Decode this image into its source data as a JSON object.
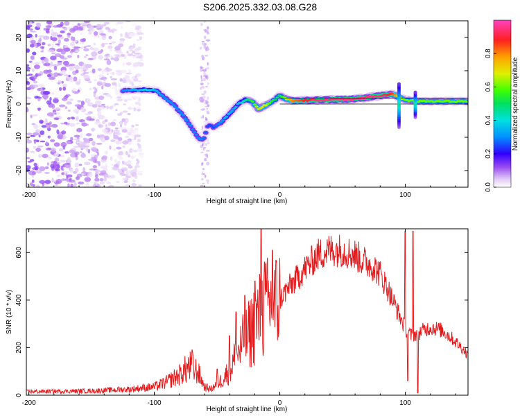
{
  "title": "S206.2025.332.03.08.G28",
  "chart_data": [
    {
      "type": "heatmap",
      "name": "spectrogram",
      "xlabel": "Height of straight line (km)",
      "ylabel": "Frequency (Hz)",
      "xlim": [
        -202,
        150
      ],
      "ylim": [
        -25,
        25
      ],
      "xticks": [
        -200,
        -100,
        0,
        100
      ],
      "yticks": [
        -20,
        -10,
        0,
        10,
        20
      ],
      "colorbar": {
        "label": "Normalized spectral amplitude",
        "range": [
          0,
          1
        ],
        "ticks": [
          0.0,
          0.2,
          0.4,
          0.6,
          0.8
        ],
        "tick_labels": [
          "0.0",
          "0.2",
          "0.4",
          "0.6",
          "0.8"
        ]
      },
      "ridge": {
        "x": [
          -125,
          -115,
          -105,
          -98,
          -92,
          -85,
          -78,
          -72,
          -67,
          -63,
          -60,
          -57,
          -53,
          -48,
          -43,
          -38,
          -33,
          -27,
          -22,
          -17,
          -12,
          -7,
          -3,
          0,
          3,
          10,
          30,
          60,
          80,
          90,
          95,
          100,
          110,
          150
        ],
        "freq": [
          4,
          4.2,
          4.3,
          4,
          2,
          0,
          -3,
          -6,
          -9,
          -11,
          -10,
          -6,
          -7,
          -6,
          -4,
          -2,
          0,
          1.3,
          0.8,
          -1.5,
          -0.5,
          0.5,
          1.5,
          2.6,
          1.8,
          1.0,
          1.2,
          1.5,
          2.5,
          3.0,
          2.0,
          1.2,
          0.8,
          0.8
        ],
        "amplitude": [
          0.3,
          0.35,
          0.4,
          0.35,
          0.3,
          0.3,
          0.3,
          0.3,
          0.3,
          0.3,
          0.28,
          0.25,
          0.25,
          0.3,
          0.35,
          0.35,
          0.35,
          0.45,
          0.55,
          0.7,
          0.7,
          0.55,
          0.5,
          0.5,
          0.6,
          0.8,
          0.95,
          0.95,
          0.95,
          0.85,
          0.7,
          0.6,
          0.6,
          0.6
        ]
      },
      "noise_region_x": [
        -202,
        -110
      ]
    },
    {
      "type": "line",
      "name": "snr",
      "xlabel": "Height of straight line (km)",
      "ylabel": "SNR (10 * v/v)",
      "xlim": [
        -202,
        150
      ],
      "ylim": [
        0,
        700
      ],
      "xticks": [
        -200,
        -100,
        0,
        100
      ],
      "yticks": [
        0,
        200,
        400,
        600
      ],
      "color": "#e41a1c",
      "envelope": {
        "x": [
          -202,
          -150,
          -120,
          -100,
          -90,
          -80,
          -72,
          -65,
          -60,
          -55,
          -45,
          -40,
          -35,
          -30,
          -25,
          -20,
          -15,
          -10,
          -5,
          0,
          5,
          10,
          15,
          20,
          25,
          30,
          35,
          40,
          45,
          50,
          55,
          60,
          65,
          70,
          75,
          80,
          85,
          90,
          95,
          100,
          105,
          110,
          115,
          120,
          125,
          130,
          135,
          140,
          145,
          150
        ],
        "y": [
          15,
          18,
          25,
          35,
          55,
          85,
          120,
          95,
          35,
          25,
          70,
          110,
          160,
          210,
          250,
          300,
          340,
          370,
          380,
          400,
          440,
          470,
          500,
          530,
          560,
          590,
          600,
          610,
          612,
          610,
          600,
          590,
          570,
          555,
          540,
          510,
          460,
          400,
          340,
          280,
          250,
          260,
          275,
          285,
          280,
          270,
          250,
          225,
          200,
          170
        ]
      },
      "spikes": [
        {
          "x": -70,
          "y": 190
        },
        {
          "x": -50,
          "y": 110
        },
        {
          "x": -40,
          "y": 250
        },
        {
          "x": -35,
          "y": 350
        },
        {
          "x": -28,
          "y": 420
        },
        {
          "x": -20,
          "y": 480
        },
        {
          "x": -15,
          "y": 700
        },
        {
          "x": -12,
          "y": 560
        },
        {
          "x": -6,
          "y": 610
        },
        {
          "x": 100,
          "y": 690
        },
        {
          "x": 102,
          "y": 60
        },
        {
          "x": 106,
          "y": 690
        },
        {
          "x": 110,
          "y": 10
        }
      ]
    }
  ]
}
